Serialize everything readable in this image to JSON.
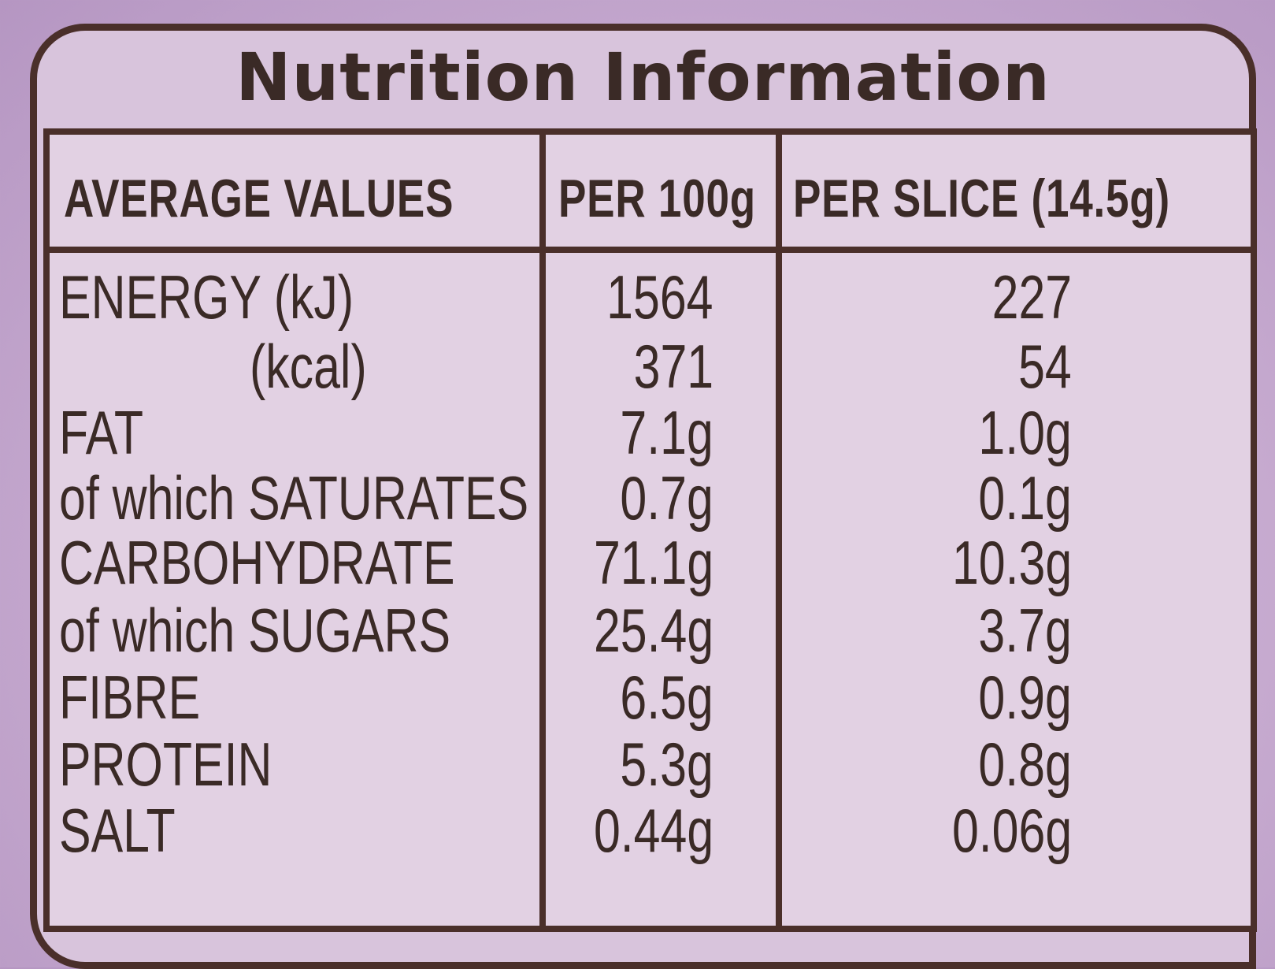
{
  "title": "Nutrition Information",
  "headers": {
    "label": "AVERAGE VALUES",
    "per100": "PER 100g",
    "perSlice": "PER SLICE (14.5g)"
  },
  "rows": [
    {
      "label": "ENERGY (kJ)",
      "per100": "1564",
      "perSlice": "227"
    },
    {
      "label": "(kcal)",
      "per100": "371",
      "perSlice": "54"
    },
    {
      "label": "FAT",
      "per100": "7.1g",
      "perSlice": "1.0g"
    },
    {
      "label": "of which SATURATES",
      "per100": "0.7g",
      "perSlice": "0.1g"
    },
    {
      "label": "CARBOHYDRATE",
      "per100": "71.1g",
      "perSlice": "10.3g"
    },
    {
      "label": "of which SUGARS",
      "per100": "25.4g",
      "perSlice": "3.7g"
    },
    {
      "label": "FIBRE",
      "per100": "6.5g",
      "perSlice": "0.9g"
    },
    {
      "label": "PROTEIN",
      "per100": "5.3g",
      "perSlice": "0.8g"
    },
    {
      "label": "SALT",
      "per100": "0.44g",
      "perSlice": "0.06g"
    }
  ]
}
